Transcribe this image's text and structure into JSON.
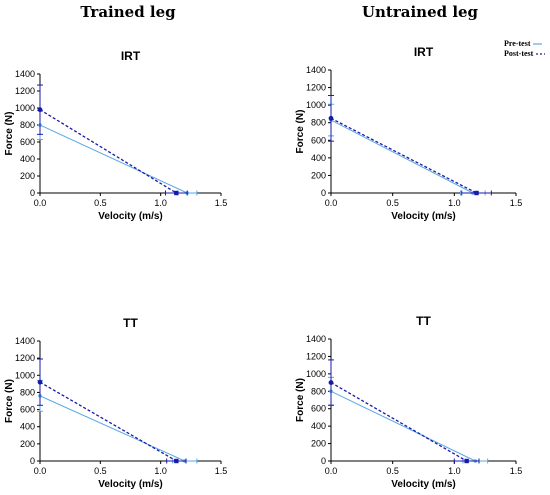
{
  "columns": {
    "left": "Trained leg",
    "right": "Untrained leg"
  },
  "legend": {
    "pre": "Pre-test",
    "post": "Post-test"
  },
  "colors": {
    "pre": "#5aa9e6",
    "post": "#1a1aa8",
    "axis": "#000000"
  },
  "chart_data": [
    {
      "type": "line",
      "title": "IRT",
      "xlabel": "Velocity (m/s)",
      "ylabel": "Force (N)",
      "xlim": [
        0,
        1.5
      ],
      "ylim": [
        0,
        1400
      ],
      "xticks": [
        "0.0",
        "0.5",
        "1.0",
        "1.5"
      ],
      "yticks": [
        "0",
        "200",
        "400",
        "600",
        "800",
        "1000",
        "1200",
        "1400"
      ],
      "series": [
        {
          "name": "Pre-test",
          "x": [
            0,
            1.22
          ],
          "y": [
            800,
            0
          ],
          "yerr": 170,
          "xerr": 0.08
        },
        {
          "name": "Post-test",
          "x": [
            0,
            1.13
          ],
          "y": [
            980,
            0
          ],
          "yerr": 290,
          "xerr": 0.09
        }
      ]
    },
    {
      "type": "line",
      "title": "IRT",
      "xlabel": "Velocity (m/s)",
      "ylabel": "Force (N)",
      "xlim": [
        0,
        1.5
      ],
      "ylim": [
        0,
        1400
      ],
      "xticks": [
        "0.0",
        "0.5",
        "1.0",
        "1.5"
      ],
      "yticks": [
        "0",
        "200",
        "400",
        "600",
        "800",
        "1000",
        "1200",
        "1400"
      ],
      "series": [
        {
          "name": "Pre-test",
          "x": [
            0,
            1.15
          ],
          "y": [
            830,
            0
          ],
          "yerr": 180,
          "xerr": 0.1
        },
        {
          "name": "Post-test",
          "x": [
            0,
            1.18
          ],
          "y": [
            850,
            0
          ],
          "yerr": 260,
          "xerr": 0.12
        }
      ]
    },
    {
      "type": "line",
      "title": "TT",
      "xlabel": "Velocity (m/s)",
      "ylabel": "Force (N)",
      "xlim": [
        0,
        1.5
      ],
      "ylim": [
        0,
        1400
      ],
      "xticks": [
        "0.0",
        "0.5",
        "1.0",
        "1.5"
      ],
      "yticks": [
        "0",
        "200",
        "400",
        "600",
        "800",
        "1000",
        "1200",
        "1400"
      ],
      "series": [
        {
          "name": "Pre-test",
          "x": [
            0,
            1.2
          ],
          "y": [
            760,
            0
          ],
          "yerr": 180,
          "xerr": 0.1
        },
        {
          "name": "Post-test",
          "x": [
            0,
            1.13
          ],
          "y": [
            920,
            0
          ],
          "yerr": 270,
          "xerr": 0.08
        }
      ]
    },
    {
      "type": "line",
      "title": "TT",
      "xlabel": "Velocity (m/s)",
      "ylabel": "Force (N)",
      "xlim": [
        0,
        1.5
      ],
      "ylim": [
        0,
        1400
      ],
      "xticks": [
        "0.0",
        "0.5",
        "1.0",
        "1.5"
      ],
      "yticks": [
        "0",
        "200",
        "400",
        "600",
        "800",
        "1000",
        "1200",
        "1400"
      ],
      "series": [
        {
          "name": "Pre-test",
          "x": [
            0,
            1.17
          ],
          "y": [
            800,
            0
          ],
          "yerr": 160,
          "xerr": 0.1
        },
        {
          "name": "Post-test",
          "x": [
            0,
            1.1
          ],
          "y": [
            900,
            0
          ],
          "yerr": 260,
          "xerr": 0.1
        }
      ]
    }
  ]
}
